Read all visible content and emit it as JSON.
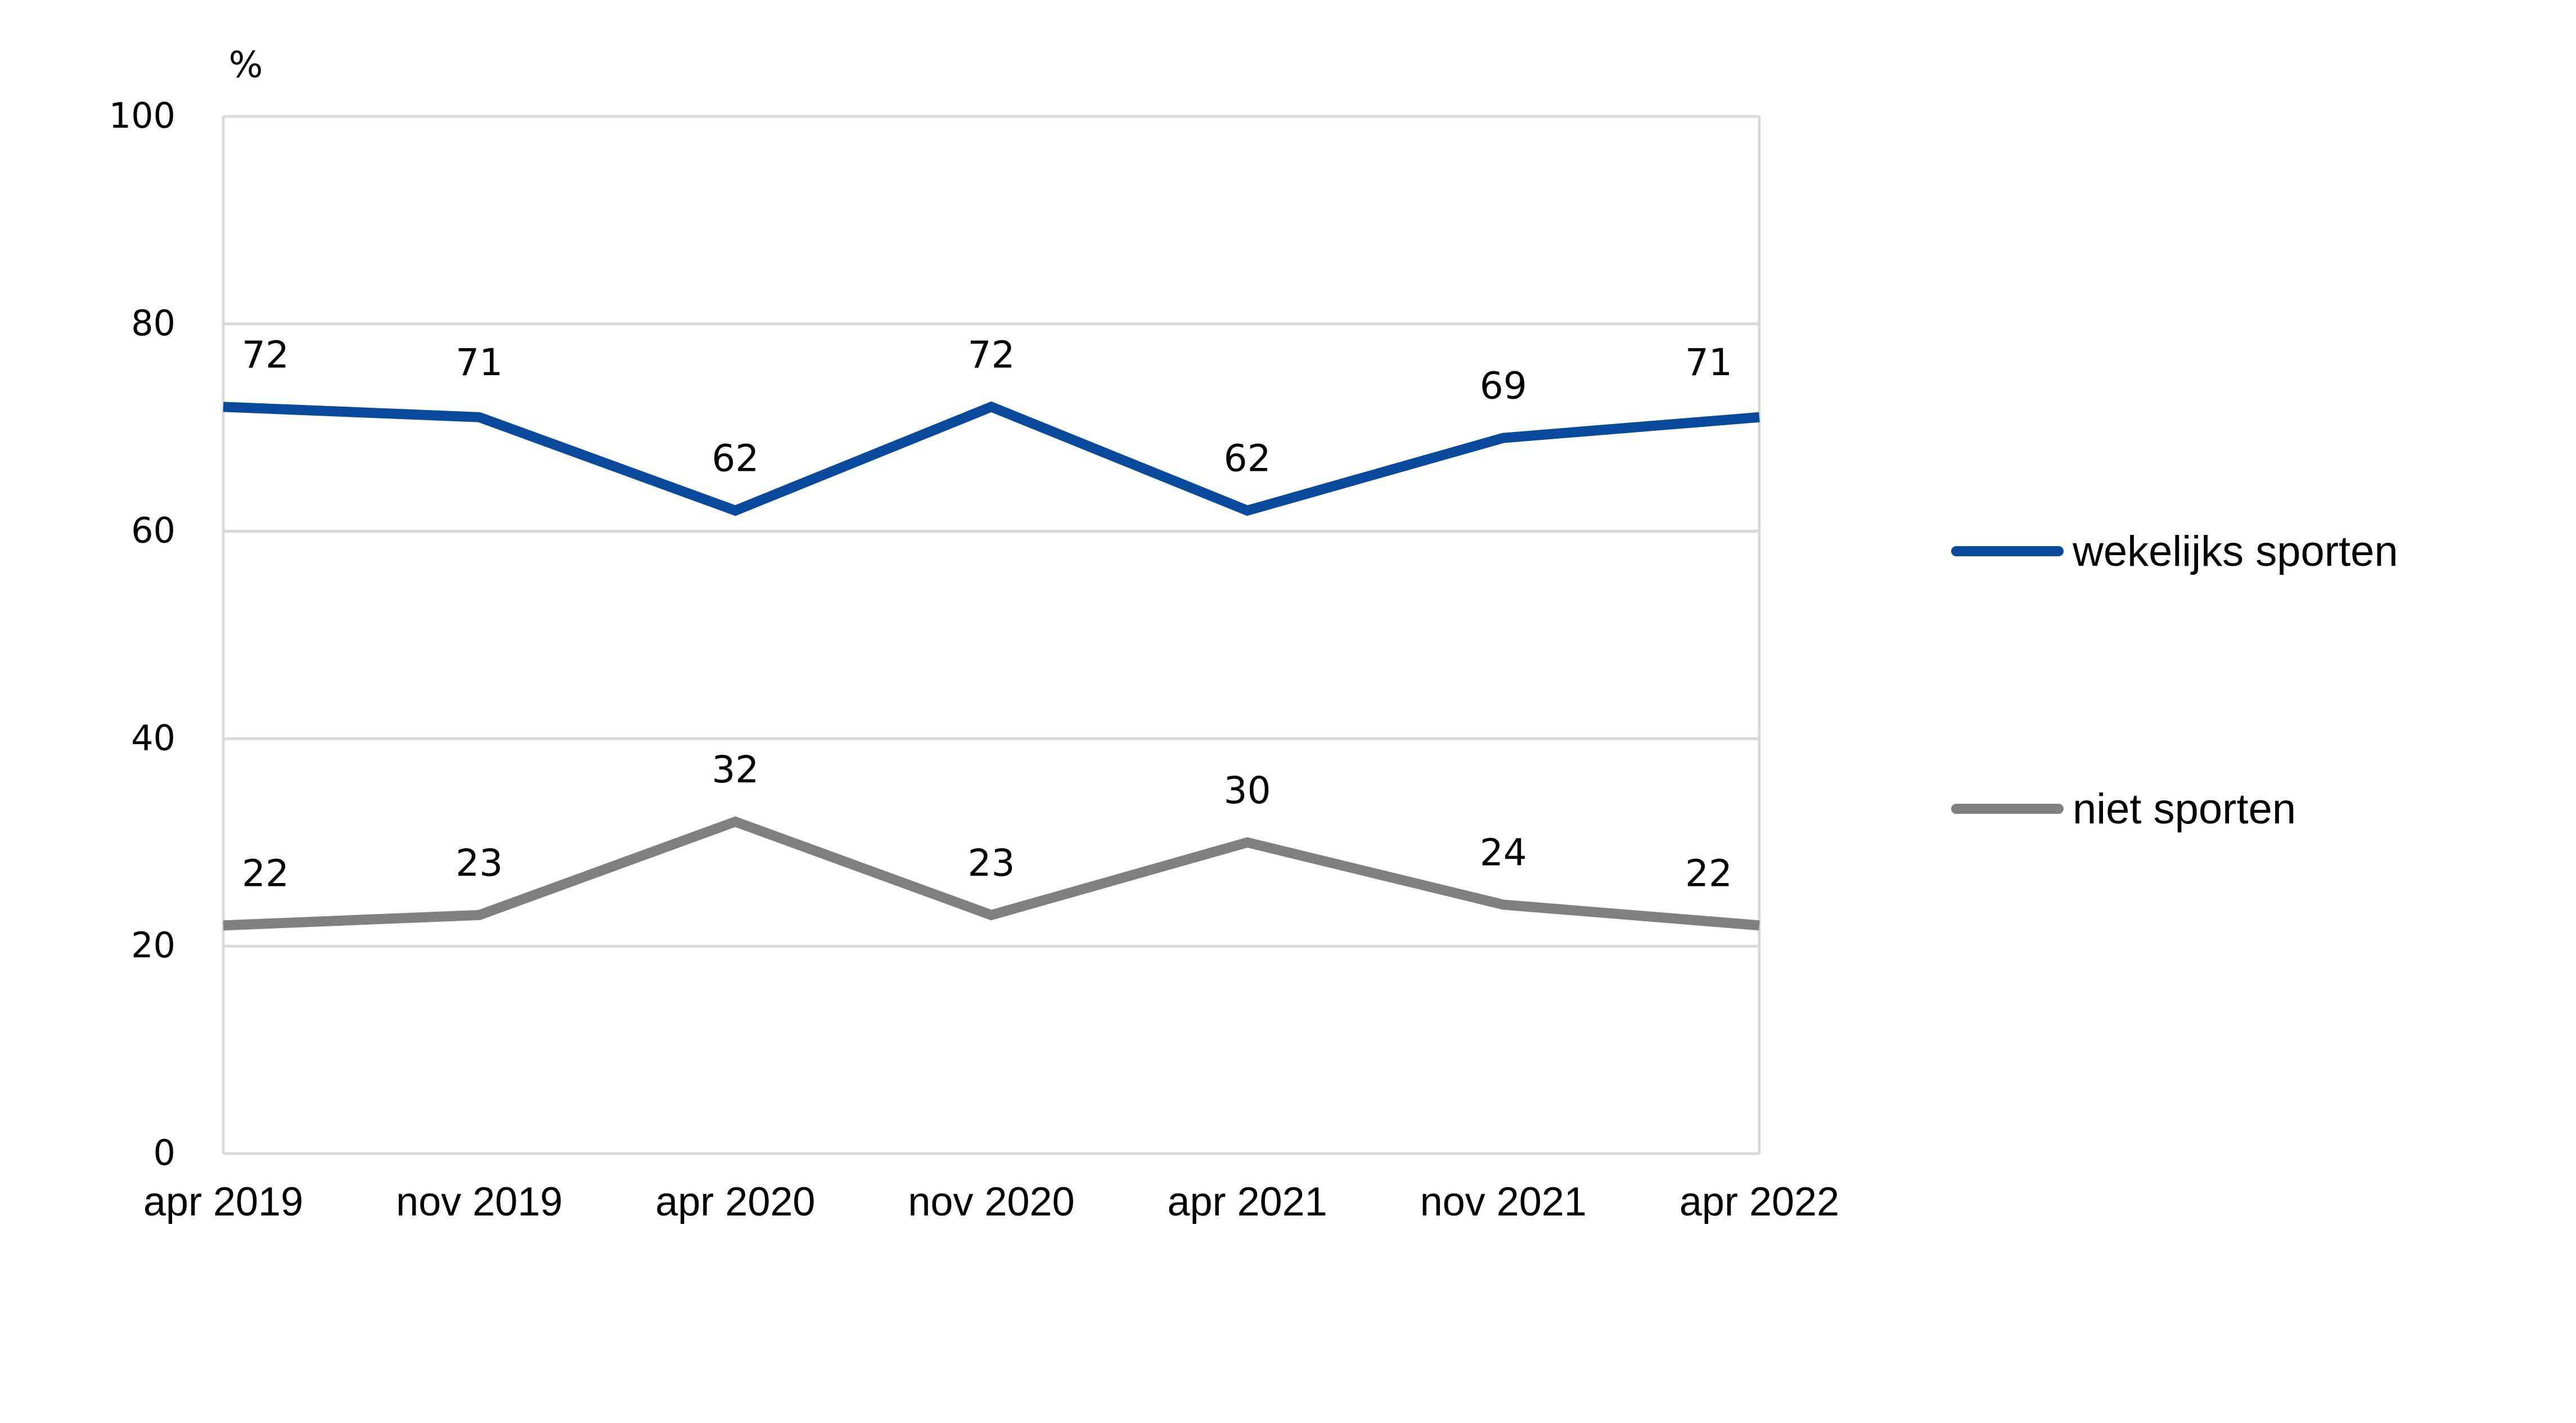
{
  "chart_data": {
    "type": "line",
    "title": "",
    "xlabel": "",
    "ylabel": "%",
    "ylim": [
      0,
      100
    ],
    "yticks": [
      0,
      20,
      40,
      60,
      80,
      100
    ],
    "categories": [
      "apr 2019",
      "nov 2019",
      "apr 2020",
      "nov 2020",
      "apr 2021",
      "nov 2021",
      "apr 2022"
    ],
    "grid": true,
    "legend_position": "right",
    "series": [
      {
        "name": "wekelijks sporten",
        "color": "#0a4a9c",
        "values": [
          72,
          71,
          62,
          72,
          62,
          69,
          71
        ]
      },
      {
        "name": "niet sporten",
        "color": "#808080",
        "values": [
          22,
          23,
          32,
          23,
          30,
          24,
          22
        ]
      }
    ]
  }
}
